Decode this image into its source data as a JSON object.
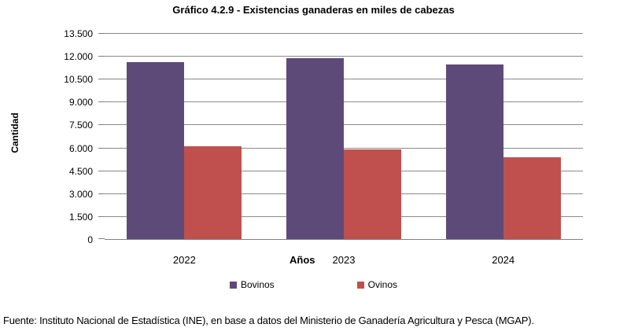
{
  "footer": "Fuente: Instituto Nacional de Estadística (INE), en base a datos del Ministerio de Ganadería Agricultura y Pesca (MGAP).",
  "chart_data": {
    "type": "bar",
    "title": "Gráfico 4.2.9 - Existencias ganaderas en miles de cabezas",
    "xlabel": "Años",
    "ylabel": "Cantidad",
    "categories": [
      "2022",
      "2023",
      "2024"
    ],
    "series": [
      {
        "name": "Bovinos",
        "color": "#5E4A78",
        "values": [
          11600,
          11850,
          11450
        ]
      },
      {
        "name": "Ovinos",
        "color": "#C0504D",
        "values": [
          6100,
          5900,
          5350
        ]
      }
    ],
    "ylim": [
      0,
      13500
    ],
    "ytick_step": 1500,
    "ytick_labels": [
      "0",
      "1.500",
      "3.000",
      "4.500",
      "6.000",
      "7.500",
      "9.000",
      "10.500",
      "12.000",
      "13.500"
    ],
    "grid": true,
    "gridline_color": "#8a8a8a",
    "legend_position": "bottom"
  }
}
